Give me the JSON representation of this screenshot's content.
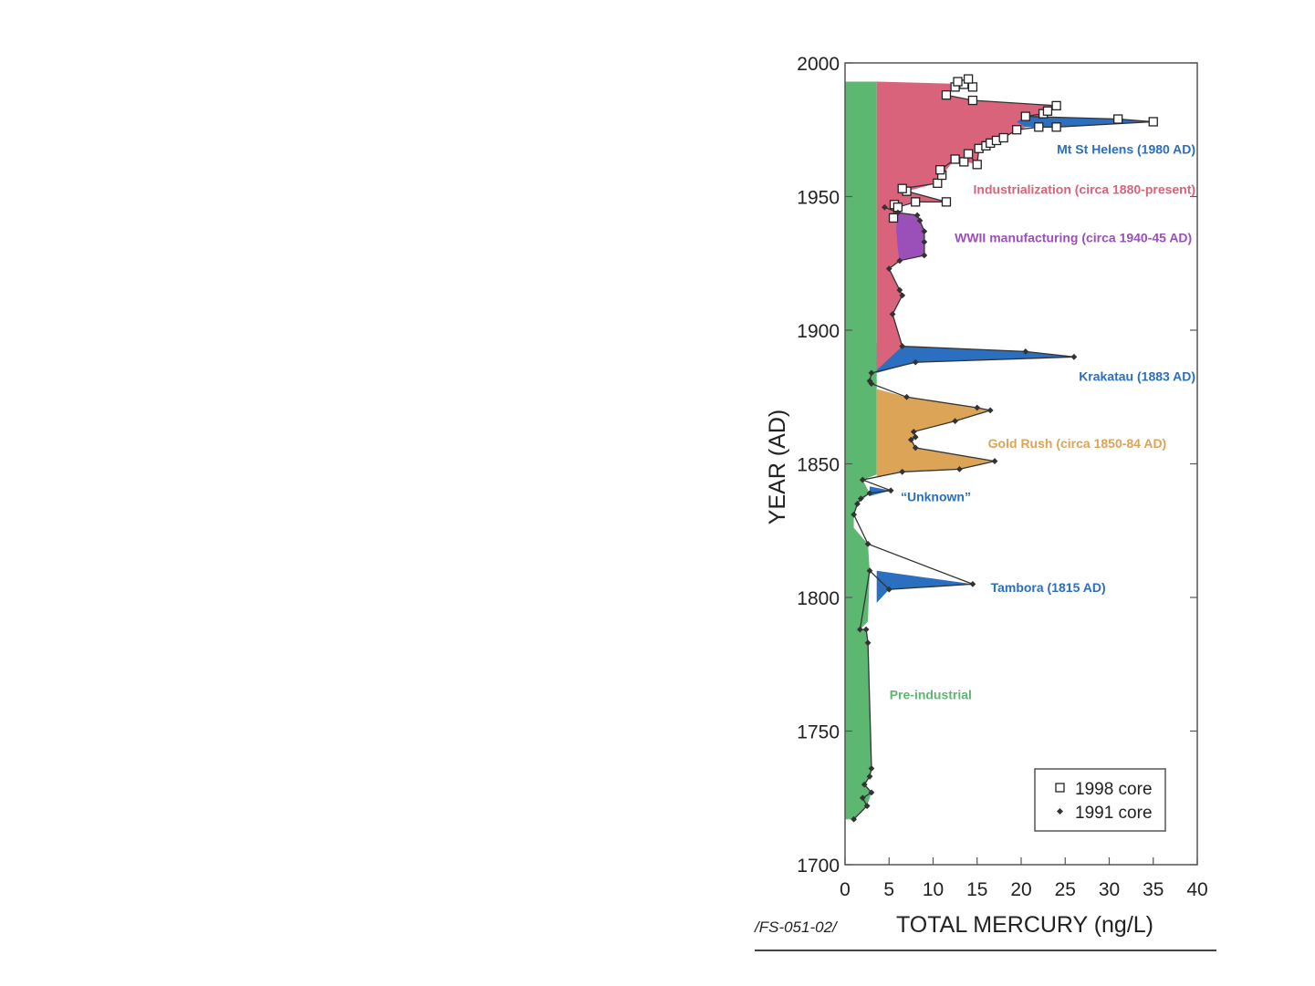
{
  "chart_data": {
    "type": "area",
    "xlabel": "TOTAL MERCURY (ng/L)",
    "ylabel": "YEAR (AD)",
    "xlim": [
      0,
      40
    ],
    "ylim": [
      1700,
      2000
    ],
    "x_ticks": [
      "0",
      "5",
      "10",
      "15",
      "20",
      "25",
      "30",
      "35",
      "40"
    ],
    "y_ticks": [
      "1700",
      "1750",
      "1800",
      "1850",
      "1900",
      "1950",
      "2000"
    ],
    "grid": false,
    "legend_position": "bottom-right",
    "footer_code": "/FS-051-02/",
    "baseline_mercury": 3.6,
    "colors": {
      "pre_industrial": "#5cb870",
      "industrialization": "#d9637a",
      "volcanic": "#2a6fc0",
      "wwii": "#9b4fb8",
      "gold_rush": "#dca456",
      "outline": "#333333"
    },
    "legend": [
      {
        "marker": "square",
        "label": "1998 core"
      },
      {
        "marker": "diamond",
        "label": "1991 core"
      }
    ],
    "annotations": [
      {
        "text": "Mt St Helens (1980 AD)",
        "color": "#2a6fc0",
        "x": 39.8,
        "y": 1966
      },
      {
        "text": "Industrialization (circa 1880-present)",
        "color": "#d9637a",
        "x": 39.8,
        "y": 1951
      },
      {
        "text": "WWII manufacturing (circa 1940-45 AD)",
        "color": "#9b4fb8",
        "x": 39.4,
        "y": 1933
      },
      {
        "text": "Krakatau (1883 AD)",
        "color": "#2a6fc0",
        "x": 39.8,
        "y": 1881
      },
      {
        "text": "Gold Rush (circa 1850-84 AD)",
        "color": "#dca456",
        "x": 36.5,
        "y": 1856
      },
      {
        "text": "“Unknown”",
        "color": "#2a6fc0",
        "x": 14.3,
        "y": 1836
      },
      {
        "text": "Tambora (1815 AD)",
        "color": "#2a6fc0",
        "x": 29.6,
        "y": 1802
      },
      {
        "text": "Pre-industrial",
        "color": "#5cb870",
        "x": 14.4,
        "y": 1762
      }
    ],
    "series": [
      {
        "name": "1998 core",
        "marker": "square",
        "points": [
          [
            5.5,
            1942
          ],
          [
            5.6,
            1947
          ],
          [
            6.0,
            1946
          ],
          [
            8.0,
            1948
          ],
          [
            11.5,
            1948
          ],
          [
            7.0,
            1952
          ],
          [
            6.5,
            1953
          ],
          [
            10.5,
            1955
          ],
          [
            11.0,
            1958
          ],
          [
            10.8,
            1960
          ],
          [
            12.5,
            1964
          ],
          [
            13.5,
            1963
          ],
          [
            14.0,
            1966
          ],
          [
            15.0,
            1962
          ],
          [
            15.2,
            1968
          ],
          [
            16.0,
            1969
          ],
          [
            16.5,
            1970
          ],
          [
            17.2,
            1971
          ],
          [
            18.0,
            1972
          ],
          [
            19.5,
            1975
          ],
          [
            22.0,
            1976
          ],
          [
            24.0,
            1976
          ],
          [
            35.0,
            1978
          ],
          [
            31.0,
            1979
          ],
          [
            20.5,
            1980
          ],
          [
            22.5,
            1981
          ],
          [
            23.0,
            1982
          ],
          [
            24.0,
            1984
          ],
          [
            14.5,
            1986
          ],
          [
            11.5,
            1988
          ],
          [
            12.5,
            1991
          ],
          [
            13.5,
            1992
          ],
          [
            14.5,
            1991
          ],
          [
            12.8,
            1993
          ],
          [
            14.0,
            1994
          ]
        ]
      },
      {
        "name": "1991 core",
        "marker": "diamond",
        "points": [
          [
            1.0,
            1717
          ],
          [
            2.5,
            1722
          ],
          [
            2.0,
            1725
          ],
          [
            3.0,
            1727
          ],
          [
            2.2,
            1730
          ],
          [
            2.8,
            1733
          ],
          [
            3.0,
            1736
          ],
          [
            2.6,
            1783
          ],
          [
            2.4,
            1788
          ],
          [
            1.7,
            1788
          ],
          [
            2.8,
            1810
          ],
          [
            5.0,
            1803
          ],
          [
            14.5,
            1805
          ],
          [
            2.6,
            1820
          ],
          [
            1.0,
            1831
          ],
          [
            1.4,
            1835
          ],
          [
            1.8,
            1837
          ],
          [
            2.8,
            1839
          ],
          [
            5.2,
            1840
          ],
          [
            2.0,
            1844
          ],
          [
            6.5,
            1847
          ],
          [
            13.0,
            1848
          ],
          [
            17.0,
            1851
          ],
          [
            8.0,
            1856
          ],
          [
            7.5,
            1859
          ],
          [
            8.0,
            1860
          ],
          [
            7.8,
            1862
          ],
          [
            12.5,
            1866
          ],
          [
            16.5,
            1870
          ],
          [
            15.0,
            1871
          ],
          [
            7.0,
            1875
          ],
          [
            3.0,
            1880
          ],
          [
            2.8,
            1881
          ],
          [
            3.0,
            1884
          ],
          [
            8.0,
            1888
          ],
          [
            26.0,
            1890
          ],
          [
            20.5,
            1892
          ],
          [
            6.5,
            1894
          ],
          [
            5.4,
            1906
          ],
          [
            6.5,
            1913
          ],
          [
            6.2,
            1915
          ],
          [
            5.0,
            1923
          ],
          [
            6.2,
            1926
          ],
          [
            9.0,
            1928
          ],
          [
            9.0,
            1933
          ],
          [
            9.0,
            1937
          ],
          [
            8.5,
            1941
          ],
          [
            8.2,
            1943
          ],
          [
            6.0,
            1944
          ],
          [
            4.5,
            1946
          ]
        ]
      }
    ],
    "regions": [
      {
        "name": "pre_industrial",
        "polygon": [
          [
            0,
            1717
          ],
          [
            1.0,
            1717
          ],
          [
            2.5,
            1722
          ],
          [
            3.0,
            1727
          ],
          [
            2.2,
            1730
          ],
          [
            2.8,
            1733
          ],
          [
            3.0,
            1736
          ],
          [
            2.6,
            1783
          ],
          [
            2.4,
            1788
          ],
          [
            1.7,
            1788
          ],
          [
            2.6,
            1791
          ],
          [
            2.8,
            1810
          ],
          [
            2.6,
            1820
          ],
          [
            1.0,
            1826
          ],
          [
            1.0,
            1831
          ],
          [
            1.4,
            1835
          ],
          [
            2.8,
            1839
          ],
          [
            2.0,
            1844
          ],
          [
            3.6,
            1846
          ],
          [
            3.6,
            1993
          ],
          [
            0,
            1993
          ]
        ]
      },
      {
        "name": "tambora",
        "polygon": [
          [
            3.6,
            1798
          ],
          [
            5.0,
            1803
          ],
          [
            14.5,
            1805
          ],
          [
            3.6,
            1810
          ]
        ]
      },
      {
        "name": "unknown",
        "polygon": [
          [
            2.8,
            1838
          ],
          [
            5.2,
            1840
          ],
          [
            2.8,
            1841.5
          ]
        ]
      },
      {
        "name": "gold_rush",
        "polygon": [
          [
            3.6,
            1845
          ],
          [
            6.5,
            1847
          ],
          [
            13.0,
            1848
          ],
          [
            17.0,
            1851
          ],
          [
            8.0,
            1856
          ],
          [
            7.5,
            1859
          ],
          [
            8.0,
            1860
          ],
          [
            7.8,
            1862
          ],
          [
            12.5,
            1866
          ],
          [
            16.5,
            1870
          ],
          [
            15.0,
            1871
          ],
          [
            7.0,
            1875
          ],
          [
            3.6,
            1878
          ]
        ]
      },
      {
        "name": "krakatau",
        "polygon": [
          [
            3.6,
            1884
          ],
          [
            8.0,
            1888
          ],
          [
            26.0,
            1890
          ],
          [
            20.5,
            1892
          ],
          [
            6.5,
            1894
          ],
          [
            3.6,
            1895
          ]
        ]
      },
      {
        "name": "industrialization",
        "polygon": [
          [
            3.6,
            1885
          ],
          [
            6.5,
            1894
          ],
          [
            5.4,
            1906
          ],
          [
            6.5,
            1913
          ],
          [
            6.2,
            1915
          ],
          [
            5.0,
            1923
          ],
          [
            6.2,
            1926
          ],
          [
            9.0,
            1928
          ],
          [
            9.0,
            1933
          ],
          [
            9.0,
            1937
          ],
          [
            8.5,
            1941
          ],
          [
            6.0,
            1944
          ],
          [
            5.5,
            1946
          ],
          [
            8.0,
            1948
          ],
          [
            11.5,
            1948
          ],
          [
            7.0,
            1952
          ],
          [
            10.5,
            1955
          ],
          [
            11.0,
            1958
          ],
          [
            12.5,
            1964
          ],
          [
            15.0,
            1962
          ],
          [
            15.2,
            1968
          ],
          [
            18.0,
            1972
          ],
          [
            20.5,
            1976
          ],
          [
            24.0,
            1984
          ],
          [
            14.5,
            1986
          ],
          [
            11.5,
            1988
          ],
          [
            12.5,
            1991
          ],
          [
            14.5,
            1992
          ],
          [
            3.6,
            1993
          ]
        ]
      },
      {
        "name": "wwii",
        "polygon": [
          [
            6.2,
            1926
          ],
          [
            9.0,
            1928
          ],
          [
            9.0,
            1933
          ],
          [
            9.0,
            1937
          ],
          [
            8.5,
            1941
          ],
          [
            8.2,
            1943
          ],
          [
            6.0,
            1944
          ],
          [
            5.8,
            1938
          ],
          [
            6.0,
            1930
          ]
        ]
      },
      {
        "name": "volcanic",
        "polygon": [
          [
            20.5,
            1976
          ],
          [
            22.0,
            1976
          ],
          [
            24.0,
            1976
          ],
          [
            35.0,
            1978
          ],
          [
            31.0,
            1979
          ],
          [
            20.5,
            1980
          ],
          [
            19.5,
            1978
          ]
        ]
      }
    ]
  }
}
